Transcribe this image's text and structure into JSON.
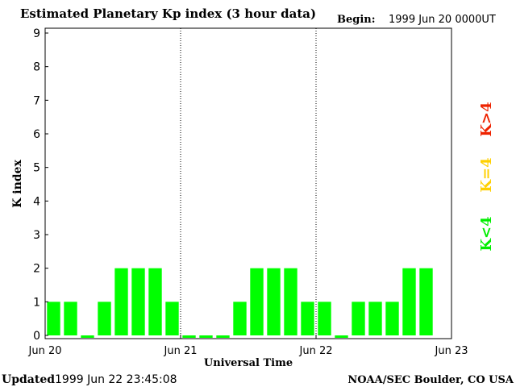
{
  "chart_data": {
    "type": "bar",
    "title": "Estimated Planetary Kp index (3 hour data)",
    "begin_label": "Begin:",
    "begin_value": "1999 Jun 20 0000UT",
    "xlabel": "Universal Time",
    "ylabel": "K index",
    "ylim": [
      0,
      9
    ],
    "yticks": [
      "0",
      "1",
      "2",
      "3",
      "4",
      "5",
      "6",
      "7",
      "8",
      "9"
    ],
    "xtick_labels": [
      "Jun 20",
      "Jun 21",
      "Jun 22",
      "Jun 23"
    ],
    "values": [
      1,
      1,
      0,
      1,
      2,
      2,
      2,
      1,
      0,
      0,
      0,
      1,
      2,
      2,
      2,
      1,
      1,
      0,
      1,
      1,
      1,
      2,
      2
    ],
    "day_separators": true,
    "legend": [
      {
        "label": "K<4",
        "color": "#00ee00"
      },
      {
        "label": "K=4",
        "color": "#ffd000"
      },
      {
        "label": "K>4",
        "color": "#ee2200"
      }
    ],
    "bar_color": "#00ff00"
  },
  "footer": {
    "updated_label": "Updated",
    "updated_value": "1999 Jun 22 23:45:08",
    "source": "NOAA/SEC Boulder, CO USA"
  }
}
